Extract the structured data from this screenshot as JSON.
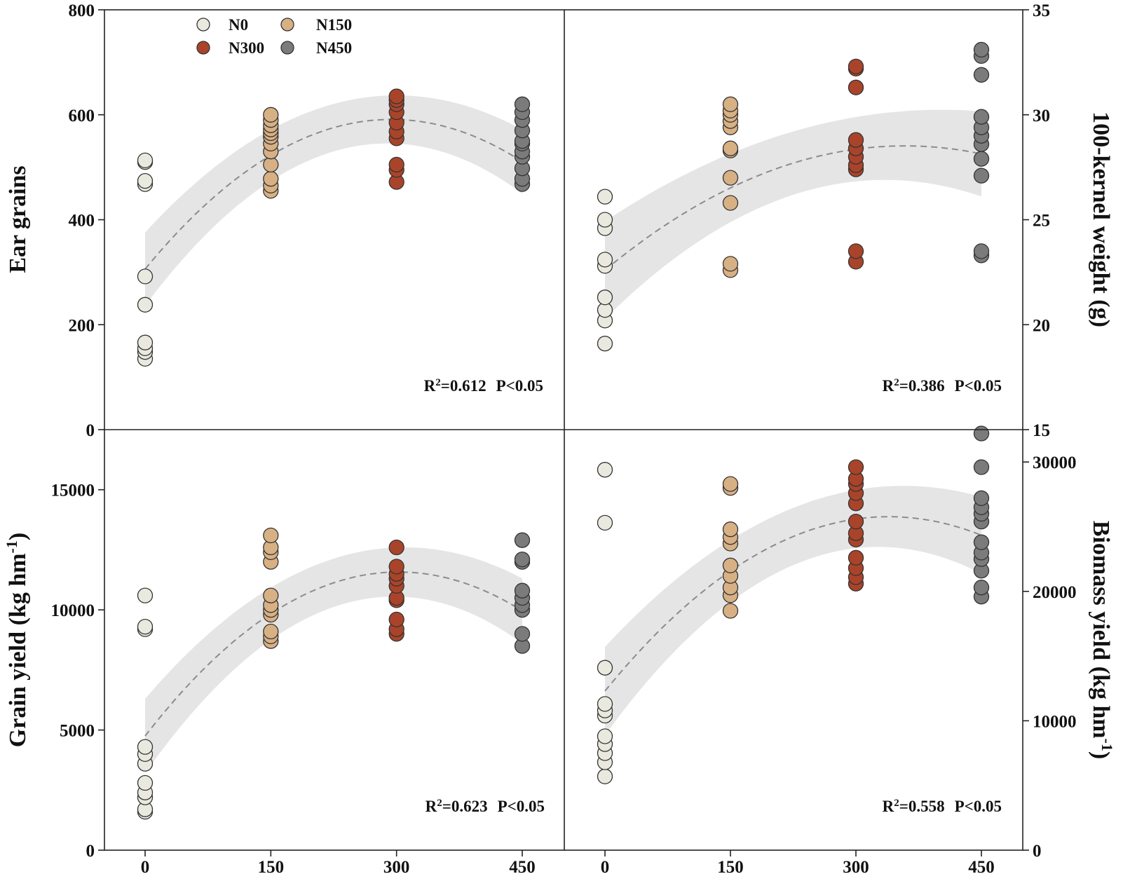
{
  "legend": {
    "items": [
      {
        "label": "N0",
        "color": "#e9e9df"
      },
      {
        "label": "N150",
        "color": "#d7b084"
      },
      {
        "label": "N300",
        "color": "#a9442a"
      },
      {
        "label": "N450",
        "color": "#7b7b7b"
      }
    ]
  },
  "chart_data": [
    {
      "type": "scatter",
      "panel": "top-left",
      "ylabel": "Ear grains",
      "ylim": [
        0,
        800
      ],
      "yticks": [
        "0",
        "200",
        "400",
        "600",
        "800"
      ],
      "x_ticks": [
        "0",
        "150",
        "300",
        "450"
      ],
      "annotation": {
        "r2_prefix": "R",
        "r2_sup": "2",
        "r2_value": "=0.612",
        "p_text": "P<0.05"
      },
      "fit": {
        "a": -0.0033,
        "b": 1.94,
        "c": 306,
        "band": 45
      },
      "series": [
        {
          "name": "N0",
          "x": 0,
          "values": [
            135,
            148,
            155,
            166,
            238,
            292,
            468,
            474,
            510,
            513
          ]
        },
        {
          "name": "N150",
          "x": 150,
          "values": [
            455,
            465,
            478,
            505,
            530,
            545,
            558,
            565,
            572,
            580,
            590,
            600
          ]
        },
        {
          "name": "N300",
          "x": 300,
          "values": [
            472,
            495,
            505,
            555,
            568,
            585,
            605,
            620,
            628,
            635
          ]
        },
        {
          "name": "N450",
          "x": 450,
          "values": [
            468,
            478,
            498,
            520,
            530,
            545,
            550,
            570,
            590,
            605,
            620
          ]
        }
      ]
    },
    {
      "type": "scatter",
      "panel": "top-right",
      "ylabel": "100-kernel weight (g)",
      "ylim": [
        15,
        35
      ],
      "yticks": [
        "15",
        "20",
        "25",
        "30",
        "35"
      ],
      "x_ticks": [
        "0",
        "150",
        "300",
        "450"
      ],
      "annotation": {
        "r2_prefix": "R",
        "r2_sup": "2",
        "r2_value": "=0.386",
        "p_text": "P<0.05"
      },
      "fit": {
        "a": -4.6e-05,
        "b": 0.033,
        "c": 22.6,
        "band": 1.5
      },
      "series": [
        {
          "name": "N0",
          "x": 0,
          "values": [
            19.1,
            20.2,
            20.7,
            21.3,
            22.8,
            23.1,
            24.6,
            25.0,
            26.1
          ]
        },
        {
          "name": "N150",
          "x": 150,
          "values": [
            22.6,
            22.9,
            25.8,
            27.0,
            28.3,
            28.4,
            29.4,
            29.7,
            30.0,
            30.2,
            30.5
          ]
        },
        {
          "name": "N300",
          "x": 300,
          "values": [
            23.0,
            23.5,
            27.4,
            27.6,
            28.0,
            28.4,
            28.8,
            31.3,
            32.2,
            32.3
          ]
        },
        {
          "name": "N450",
          "x": 450,
          "values": [
            23.3,
            23.5,
            27.1,
            27.9,
            28.6,
            29.0,
            29.4,
            29.9,
            31.9,
            32.8,
            33.1
          ]
        }
      ]
    },
    {
      "type": "scatter",
      "panel": "bottom-left",
      "ylabel": "Grain yield (kg hm",
      "ylabel_sup": "-1",
      "ylabel_end": ")",
      "ylim": [
        0,
        17500
      ],
      "yticks": [
        "0",
        "5000",
        "10000",
        "15000"
      ],
      "x_ticks": [
        "0",
        "150",
        "300",
        "450"
      ],
      "annotation": {
        "r2_prefix": "R",
        "r2_sup": "2",
        "r2_value": "=0.623",
        "p_text": "P<0.05"
      },
      "fit": {
        "a": -0.0745,
        "b": 45.1,
        "c": 4750,
        "band": 1000
      },
      "series": [
        {
          "name": "N0",
          "x": 0,
          "values": [
            1600,
            1700,
            2200,
            2400,
            2800,
            3600,
            4000,
            4300,
            9200,
            9300,
            10600
          ]
        },
        {
          "name": "N150",
          "x": 150,
          "values": [
            8700,
            8900,
            9100,
            9800,
            10000,
            10200,
            10600,
            12000,
            12400,
            12600,
            13100
          ]
        },
        {
          "name": "N300",
          "x": 300,
          "values": [
            9000,
            9200,
            9600,
            10400,
            10500,
            11000,
            11300,
            11500,
            11800,
            12600
          ]
        },
        {
          "name": "N450",
          "x": 450,
          "values": [
            8500,
            9000,
            10000,
            10200,
            10500,
            10800,
            12000,
            12100,
            12900
          ]
        }
      ]
    },
    {
      "type": "scatter",
      "panel": "bottom-right",
      "ylabel": "Biomass yield (kg hm",
      "ylabel_sup": "-1",
      "ylabel_end": ")",
      "ylim": [
        0,
        32500
      ],
      "yticks": [
        "0",
        "10000",
        "20000",
        "30000"
      ],
      "x_ticks": [
        "0",
        "150",
        "300",
        "450"
      ],
      "annotation": {
        "r2_prefix": "R",
        "r2_sup": "2",
        "r2_value": "=0.558",
        "p_text": "P<0.05"
      },
      "fit": {
        "a": -0.117,
        "b": 79.4,
        "c": 12300,
        "band": 2200
      },
      "series": [
        {
          "name": "N0",
          "x": 0,
          "values": [
            5700,
            6800,
            7500,
            8200,
            8800,
            10400,
            10800,
            11300,
            14100,
            25300,
            29400
          ]
        },
        {
          "name": "N150",
          "x": 150,
          "values": [
            18500,
            19700,
            20300,
            21200,
            22000,
            23700,
            24200,
            24800,
            28000,
            28300
          ]
        },
        {
          "name": "N300",
          "x": 300,
          "values": [
            20600,
            21100,
            21800,
            22600,
            24000,
            24500,
            25400,
            26800,
            27600,
            28300,
            28700,
            29600
          ]
        },
        {
          "name": "N450",
          "x": 450,
          "values": [
            19600,
            20300,
            21600,
            22500,
            23000,
            23800,
            25400,
            26000,
            26500,
            27200,
            29600,
            32200
          ]
        }
      ]
    }
  ]
}
